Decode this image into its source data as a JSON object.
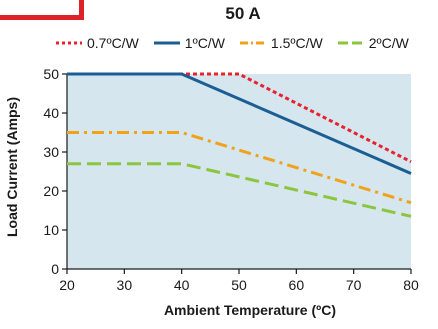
{
  "chart_data": {
    "type": "line",
    "title": "50 A",
    "xlabel": "Ambient Temperature (ºC)",
    "ylabel": "Load Current (Amps)",
    "xlim": [
      20,
      80
    ],
    "ylim": [
      0,
      50
    ],
    "xticks": [
      "20",
      "30",
      "40",
      "50",
      "60",
      "70",
      "80"
    ],
    "yticks": [
      "0",
      "10",
      "20",
      "30",
      "40",
      "50"
    ],
    "legend_position": "top",
    "grid": false,
    "background_color": "#d5e6ef",
    "series": [
      {
        "name": "0.7ºC/W",
        "color": "#e8212e",
        "dash": "dotted",
        "x": [
          20,
          50,
          80
        ],
        "y": [
          50,
          50,
          27.5
        ]
      },
      {
        "name": "1ºC/W",
        "color": "#1b5e94",
        "dash": "solid",
        "x": [
          20,
          40,
          80
        ],
        "y": [
          50,
          50,
          24.5
        ]
      },
      {
        "name": "1.5ºC/W",
        "color": "#f0a21b",
        "dash": "dashdot",
        "x": [
          20,
          40,
          80
        ],
        "y": [
          35,
          35,
          17
        ]
      },
      {
        "name": "2ºC/W",
        "color": "#8cc63e",
        "dash": "dashed",
        "x": [
          20,
          40,
          80
        ],
        "y": [
          27,
          27,
          13.5
        ]
      }
    ]
  }
}
